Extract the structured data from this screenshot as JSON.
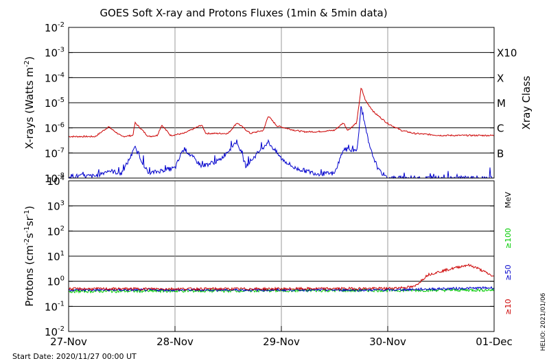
{
  "colors": {
    "long_xray": "#cc0000",
    "short_xray": "#0000cc",
    "p10": "#cc0000",
    "p50": "#0000cc",
    "p100": "#00cc00",
    "grid": "#999999",
    "axis": "#000000"
  },
  "chart_data": [
    {
      "type": "line",
      "title": "GOES Soft X-ray and Protons Fluxes   (1min & 5min data)",
      "ylabel_main": "X-rays (Watts m",
      "ylabel_exp": "-2",
      "ylabel_close": ")",
      "y_scale": "log",
      "ylim": [
        1e-08,
        0.01
      ],
      "y_ticks": [
        {
          "value": 0.01,
          "base": "10",
          "exp": "-2"
        },
        {
          "value": 0.001,
          "base": "10",
          "exp": "-3"
        },
        {
          "value": 0.0001,
          "base": "10",
          "exp": "-4"
        },
        {
          "value": 1e-05,
          "base": "10",
          "exp": "-5"
        },
        {
          "value": 1e-06,
          "base": "10",
          "exp": "-6"
        },
        {
          "value": 1e-07,
          "base": "10",
          "exp": "-7"
        },
        {
          "value": 1e-08,
          "base": "10",
          "exp": "-8"
        }
      ],
      "right_axis_label": "Xray Class",
      "class_labels": [
        {
          "value": 0.001,
          "label": "X10"
        },
        {
          "value": 0.0001,
          "label": "X"
        },
        {
          "value": 1e-05,
          "label": "M"
        },
        {
          "value": 1e-06,
          "label": "C"
        },
        {
          "value": 1e-07,
          "label": "B"
        }
      ],
      "grid": true,
      "xlim": [
        "2020-11-27 00:00",
        "2020-12-01 00:00"
      ],
      "series": [
        {
          "x": [
            "2020-11-27 00:00",
            "2020-11-27 06:00",
            "2020-11-27 09:00",
            "2020-11-27 12:00",
            "2020-11-27 14:30",
            "2020-11-27 15:00",
            "2020-11-27 18:00",
            "2020-11-27 20:00",
            "2020-11-27 21:00",
            "2020-11-27 23:00",
            "2020-11-28 02:00",
            "2020-11-28 06:00",
            "2020-11-28 07:00",
            "2020-11-28 10:00",
            "2020-11-28 12:00",
            "2020-11-28 14:00",
            "2020-11-28 17:00",
            "2020-11-28 20:00",
            "2020-11-28 21:00",
            "2020-11-28 23:00",
            "2020-11-29 03:00",
            "2020-11-29 05:00",
            "2020-11-29 08:00",
            "2020-11-29 12:00",
            "2020-11-29 14:00",
            "2020-11-29 15:00",
            "2020-11-29 17:00",
            "2020-11-29 18:00",
            "2020-11-29 19:00",
            "2020-11-29 21:00",
            "2020-11-30 00:00",
            "2020-11-30 03:00",
            "2020-11-30 06:00",
            "2020-11-30 12:00",
            "2020-11-30 18:00",
            "2020-12-01 00:00"
          ],
          "values": [
            4.5e-07,
            4.5e-07,
            1.1e-06,
            4.5e-07,
            5e-07,
            1.6e-06,
            4.5e-07,
            5e-07,
            1.3e-06,
            5e-07,
            6e-07,
            1.3e-06,
            6e-07,
            6e-07,
            6e-07,
            1.6e-06,
            6e-07,
            8e-07,
            3e-06,
            1.2e-06,
            8e-07,
            7e-07,
            7e-07,
            8e-07,
            1.6e-06,
            8e-07,
            1.6e-06,
            4e-05,
            1.2e-05,
            4e-06,
            1.5e-06,
            8e-07,
            6e-07,
            5e-07,
            5e-07,
            5e-07
          ]
        },
        {
          "x": [
            "2020-11-27 00:00",
            "2020-11-27 06:00",
            "2020-11-27 09:00",
            "2020-11-27 12:00",
            "2020-11-27 15:00",
            "2020-11-27 18:00",
            "2020-11-27 21:00",
            "2020-11-28 00:00",
            "2020-11-28 02:00",
            "2020-11-28 06:00",
            "2020-11-28 10:00",
            "2020-11-28 14:00",
            "2020-11-28 16:00",
            "2020-11-28 21:00",
            "2020-11-29 00:00",
            "2020-11-29 03:00",
            "2020-11-29 08:00",
            "2020-11-29 12:00",
            "2020-11-29 14:00",
            "2020-11-29 17:00",
            "2020-11-29 18:00",
            "2020-11-29 20:00",
            "2020-11-29 22:00",
            "2020-11-30 00:00",
            "2020-11-30 06:00",
            "2020-11-30 12:00",
            "2020-11-30 18:00",
            "2020-12-01 00:00"
          ],
          "values": [
            1.2e-08,
            1.2e-08,
            2e-08,
            1.5e-08,
            1.6e-07,
            1.5e-08,
            2e-08,
            2.5e-08,
            1.5e-07,
            3e-08,
            5e-08,
            3e-07,
            3e-08,
            2.8e-07,
            6e-08,
            2.5e-08,
            1.5e-08,
            1.5e-08,
            1.4e-07,
            1.2e-07,
            6e-06,
            1.5e-07,
            2e-08,
            1e-08,
            1e-08,
            1e-08,
            1e-08,
            1e-08
          ]
        }
      ]
    },
    {
      "type": "line",
      "ylabel_main": "Protons (cm",
      "ylabel_exp1": "-2",
      "ylabel_mid": "s",
      "ylabel_exp2": "-1",
      "ylabel_mid2": "sr",
      "ylabel_exp3": "-1",
      "ylabel_close": ")",
      "y_scale": "log",
      "ylim": [
        0.01,
        10000.0
      ],
      "y_ticks": [
        {
          "value": 10000.0,
          "base": "10",
          "exp": "4"
        },
        {
          "value": 1000.0,
          "base": "10",
          "exp": "3"
        },
        {
          "value": 100.0,
          "base": "10",
          "exp": "2"
        },
        {
          "value": 10.0,
          "base": "10",
          "exp": "1"
        },
        {
          "value": 1.0,
          "base": "10",
          "exp": "0"
        },
        {
          "value": 0.1,
          "base": "10",
          "exp": "-1"
        },
        {
          "value": 0.01,
          "base": "10",
          "exp": "-2"
        }
      ],
      "threshold": 10,
      "energy_unit": "MeV",
      "legend": [
        "≥100",
        "≥50",
        "≥10"
      ],
      "grid": true,
      "xlim": [
        "2020-11-27 00:00",
        "2020-12-01 00:00"
      ],
      "series": [
        {
          "x": [
            "2020-11-27 00:00",
            "2020-11-28 00:00",
            "2020-11-29 00:00",
            "2020-11-30 00:00",
            "2020-11-30 06:00",
            "2020-11-30 09:00",
            "2020-11-30 12:00",
            "2020-11-30 18:00",
            "2020-11-30 20:00",
            "2020-12-01 00:00"
          ],
          "values": [
            0.5,
            0.5,
            0.5,
            0.52,
            0.6,
            1.8,
            2.5,
            4.5,
            3.5,
            1.5
          ]
        },
        {
          "x": [
            "2020-11-27 00:00",
            "2020-11-30 00:00",
            "2020-11-30 12:00",
            "2020-12-01 00:00"
          ],
          "values": [
            0.45,
            0.45,
            0.5,
            0.55
          ]
        },
        {
          "x": [
            "2020-11-27 00:00",
            "2020-12-01 00:00"
          ],
          "values": [
            0.4,
            0.45
          ]
        }
      ]
    }
  ],
  "x_tick_labels": [
    "27-Nov",
    "28-Nov",
    "29-Nov",
    "30-Nov",
    "01-Dec"
  ],
  "start_date": "Start Date: 2020/11/27 00:00 UT",
  "footer_right": "HELIO: 2021/01/06"
}
